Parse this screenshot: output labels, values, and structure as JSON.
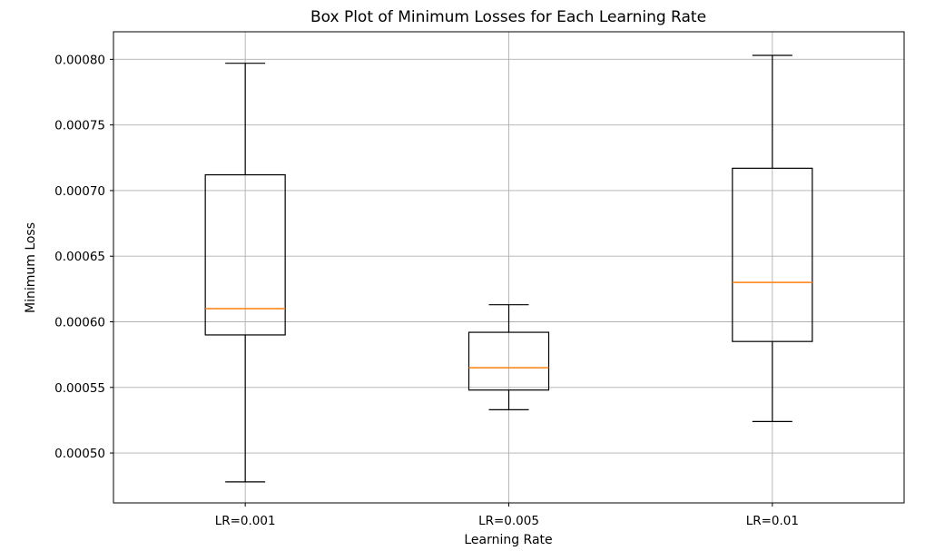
{
  "chart_data": {
    "type": "box",
    "title": "Box Plot of Minimum Losses for Each Learning Rate",
    "xlabel": "Learning Rate",
    "ylabel": "Minimum Loss",
    "categories": [
      "LR=0.001",
      "LR=0.005",
      "LR=0.01"
    ],
    "boxes": [
      {
        "whisker_low": 0.000478,
        "q1": 0.00059,
        "median": 0.00061,
        "q3": 0.000712,
        "whisker_high": 0.000797
      },
      {
        "whisker_low": 0.000533,
        "q1": 0.000548,
        "median": 0.000565,
        "q3": 0.000592,
        "whisker_high": 0.000613
      },
      {
        "whisker_low": 0.000524,
        "q1": 0.000585,
        "median": 0.00063,
        "q3": 0.000717,
        "whisker_high": 0.000803
      }
    ],
    "ylim": [
      0.000462,
      0.000821
    ],
    "yticks": [
      0.0005,
      0.00055,
      0.0006,
      0.00065,
      0.0007,
      0.00075,
      0.0008
    ],
    "ytick_labels": [
      "0.00050",
      "0.00055",
      "0.00060",
      "0.00065",
      "0.00070",
      "0.00075",
      "0.00080"
    ],
    "grid": true,
    "colors": {
      "box": "#000000",
      "median": "#ff7f0e",
      "grid": "#b0b0b0"
    }
  }
}
